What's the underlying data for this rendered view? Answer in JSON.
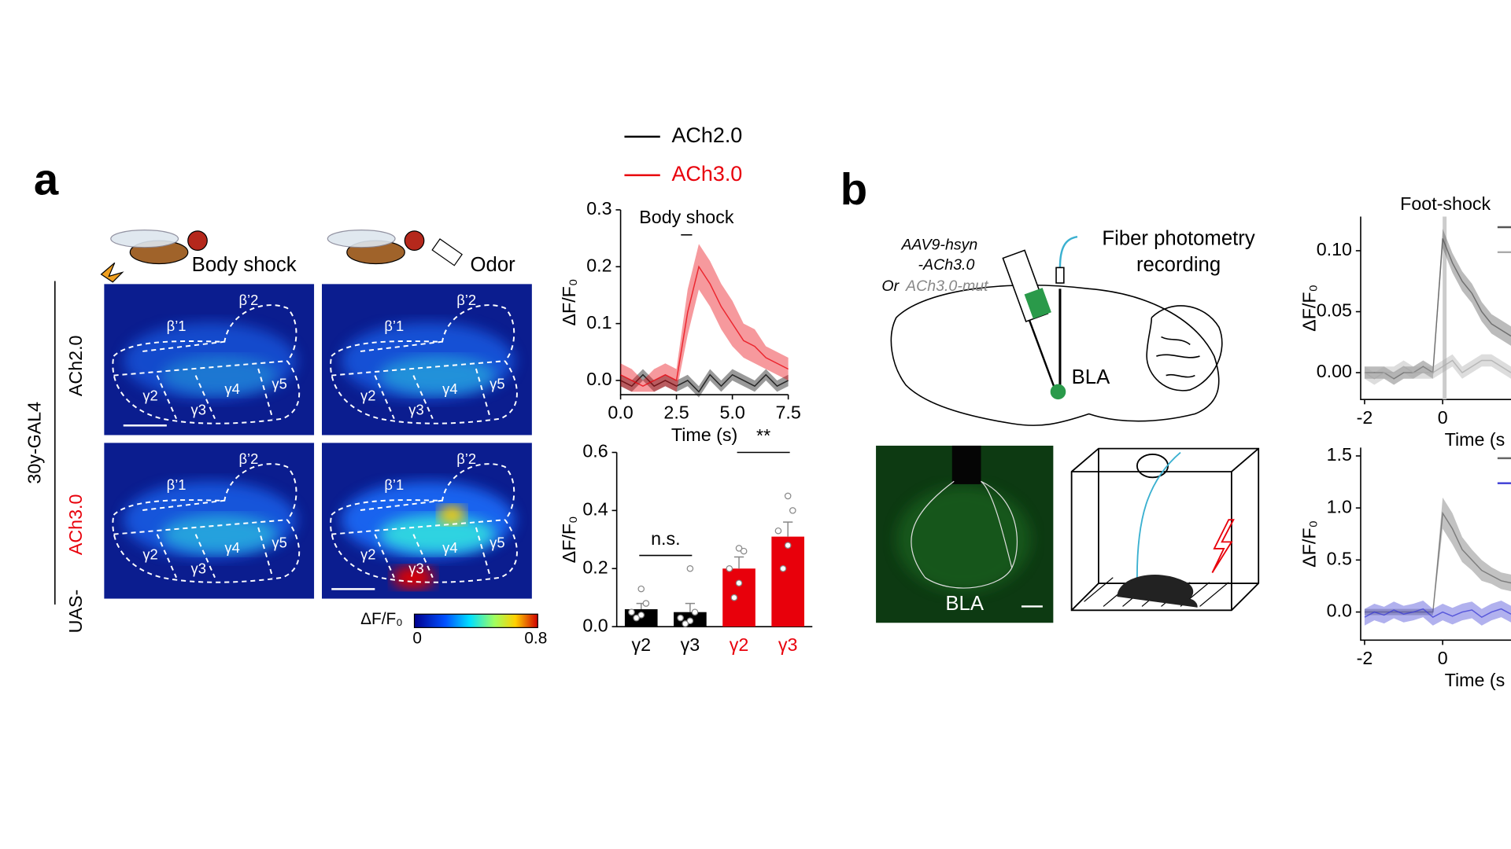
{
  "figure": {
    "panel_labels": [
      "a",
      "b"
    ],
    "stimuli": [
      "Body shock",
      "Odor"
    ],
    "rows": {
      "driver": "30y-GAL4",
      "sensors": [
        "ACh2.0",
        "ACh3.0"
      ],
      "prefix": "UAS-"
    },
    "regions": [
      "β’1",
      "β’2",
      "γ2",
      "γ3",
      "γ4",
      "γ5"
    ],
    "colorbar": {
      "label": "ΔF/F₀",
      "min": "0",
      "max": "0.8"
    },
    "schematic": {
      "virus": [
        "AAV9-hsyn",
        "-ACh3.0"
      ],
      "or": "Or",
      "mutant": "ACh3.0-mut",
      "fiber": [
        "Fiber photometry",
        "recording"
      ],
      "region": "BLA"
    }
  },
  "chart_data": [
    {
      "type": "line",
      "annotation": "Body shock",
      "stimulus": [
        2.7,
        3.2
      ],
      "xlabel": "Time (s)",
      "ylabel": "ΔF/F₀",
      "xlim": [
        0,
        7.5
      ],
      "ylim": [
        -0.025,
        0.3
      ],
      "xticks": [
        {
          "value": 0,
          "label": "0.0"
        },
        2.5,
        {
          "value": 5,
          "label": "5.0"
        },
        7.5
      ],
      "yticks": [
        {
          "value": 0,
          "label": "0.0"
        },
        0.1,
        0.2,
        0.3
      ],
      "x": [
        0,
        0.5,
        1,
        1.5,
        2,
        2.5,
        3,
        3.5,
        4,
        4.5,
        5,
        5.5,
        6,
        6.5,
        7,
        7.5
      ],
      "series": [
        {
          "name": "ACh2.0",
          "color": "#000000",
          "values": [
            0.0,
            -0.01,
            0.01,
            -0.01,
            0.0,
            -0.01,
            0.0,
            -0.02,
            0.01,
            -0.01,
            0.01,
            0.0,
            -0.01,
            0.01,
            -0.01,
            0.0
          ],
          "error": [
            0.01,
            0.01,
            0.01,
            0.01,
            0.01,
            0.01,
            0.01,
            0.01,
            0.01,
            0.01,
            0.01,
            0.01,
            0.01,
            0.01,
            0.01,
            0.01
          ]
        },
        {
          "name": "ACh3.0",
          "color": "#e8000b",
          "values": [
            0.01,
            0.0,
            -0.01,
            0.0,
            0.01,
            0.0,
            0.12,
            0.2,
            0.17,
            0.13,
            0.1,
            0.07,
            0.06,
            0.04,
            0.03,
            0.02
          ],
          "error": [
            0.02,
            0.02,
            0.01,
            0.02,
            0.02,
            0.02,
            0.04,
            0.04,
            0.04,
            0.04,
            0.04,
            0.03,
            0.03,
            0.02,
            0.02,
            0.02
          ]
        }
      ]
    },
    {
      "type": "bar",
      "ylabel": "ΔF/F₀",
      "categories": [
        "γ2",
        "γ3",
        "γ2",
        "γ3"
      ],
      "colors": [
        "#000000",
        "#000000",
        "#e8000b",
        "#e8000b"
      ],
      "values": [
        0.06,
        0.05,
        0.2,
        0.31
      ],
      "error": [
        0.02,
        0.03,
        0.04,
        0.05
      ],
      "points": [
        [
          0.13,
          0.08,
          0.05,
          0.04,
          0.03
        ],
        [
          0.2,
          0.05,
          0.03,
          0.02,
          0.01
        ],
        [
          0.27,
          0.26,
          0.2,
          0.15,
          0.1
        ],
        [
          0.45,
          0.4,
          0.33,
          0.28,
          0.2
        ]
      ],
      "annotations": [
        "n.s.",
        "**"
      ],
      "ylim": [
        0,
        0.6
      ],
      "yticks": [
        {
          "value": 0,
          "label": "0.0"
        },
        0.2,
        0.4,
        0.6
      ]
    },
    {
      "type": "line",
      "title": "Foot-shock",
      "stimulus": [
        0,
        0.1
      ],
      "xlabel": "Time (s",
      "ylabel": "ΔF/F₀",
      "xlim": [
        -2.1,
        1.75
      ],
      "ylim": [
        -0.022,
        0.128
      ],
      "xticks": [
        -2,
        0
      ],
      "yticks": [
        {
          "value": 0,
          "label": "0.00"
        },
        {
          "value": 0.05,
          "label": "0.05"
        },
        {
          "value": 0.1,
          "label": "0.10"
        }
      ],
      "x": [
        -2,
        -1.75,
        -1.5,
        -1.25,
        -1,
        -0.75,
        -0.5,
        -0.25,
        0,
        0.25,
        0.5,
        0.75,
        1,
        1.25,
        1.5,
        1.75
      ],
      "series": [
        {
          "color": "#555555",
          "values": [
            0.0,
            0.0,
            0.0,
            -0.005,
            0.0,
            0.0,
            0.005,
            0.0,
            0.11,
            0.09,
            0.075,
            0.065,
            0.05,
            0.04,
            0.035,
            0.03
          ],
          "error": [
            0.005,
            0.005,
            0.005,
            0.005,
            0.005,
            0.005,
            0.005,
            0.005,
            0.008,
            0.008,
            0.008,
            0.008,
            0.008,
            0.008,
            0.008,
            0.008
          ]
        },
        {
          "color": "#aaaaaa",
          "values": [
            0.0,
            -0.005,
            0.0,
            0.0,
            0.005,
            0.0,
            0.0,
            0.0,
            0.005,
            0.01,
            0.0,
            0.005,
            0.01,
            0.01,
            0.005,
            0.0
          ],
          "error": [
            0.005,
            0.005,
            0.005,
            0.005,
            0.005,
            0.005,
            0.005,
            0.005,
            0.005,
            0.005,
            0.005,
            0.005,
            0.005,
            0.005,
            0.005,
            0.005
          ]
        }
      ]
    },
    {
      "type": "line",
      "xlabel": "Time (s",
      "ylabel": "ΔF/F₀",
      "xlim": [
        -2.1,
        1.75
      ],
      "ylim": [
        -0.27,
        1.58
      ],
      "xticks": [
        -2,
        0
      ],
      "yticks": [
        {
          "value": 0,
          "label": "0.0"
        },
        0.5,
        {
          "value": 1,
          "label": "1.0"
        },
        1.5
      ],
      "x": [
        -2,
        -1.75,
        -1.5,
        -1.25,
        -1,
        -0.75,
        -0.5,
        -0.25,
        0,
        0.25,
        0.5,
        0.75,
        1,
        1.25,
        1.5,
        1.75
      ],
      "series": [
        {
          "color": "#666666",
          "values": [
            0,
            0,
            0,
            0,
            0,
            0,
            0,
            0,
            0.95,
            0.8,
            0.6,
            0.5,
            0.4,
            0.35,
            0.3,
            0.28
          ],
          "error": [
            0.03,
            0.03,
            0.03,
            0.03,
            0.03,
            0.03,
            0.03,
            0.03,
            0.15,
            0.15,
            0.12,
            0.1,
            0.1,
            0.08,
            0.08,
            0.08
          ]
        },
        {
          "color": "#3b3bd4",
          "values": [
            -0.05,
            0.0,
            -0.03,
            0.02,
            -0.02,
            0.0,
            0.03,
            -0.05,
            0.0,
            -0.04,
            0.0,
            0.02,
            -0.05,
            0.0,
            0.03,
            -0.02
          ],
          "error": [
            0.08,
            0.08,
            0.08,
            0.08,
            0.08,
            0.08,
            0.08,
            0.08,
            0.08,
            0.08,
            0.08,
            0.08,
            0.08,
            0.08,
            0.08,
            0.08
          ]
        }
      ]
    }
  ]
}
